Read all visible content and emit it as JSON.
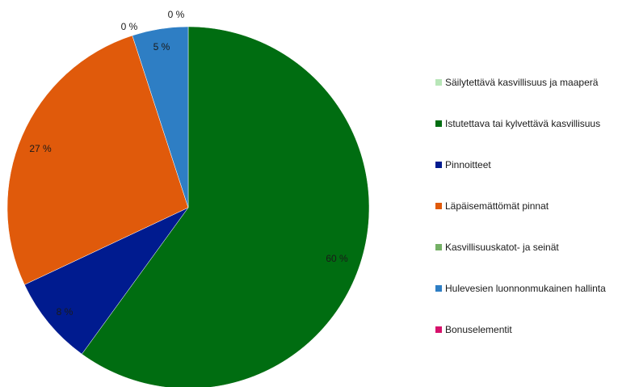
{
  "chart_data": {
    "type": "pie",
    "title": "",
    "legend_position": "right",
    "slices": [
      {
        "name": "Säilytettävä kasvillisuus ja maaperä",
        "value": 0,
        "label": "0 %",
        "color": "#b8e6b8"
      },
      {
        "name": "Istutettava tai kylvettävä kasvillisuus",
        "value": 60,
        "label": "60 %",
        "color": "#006d11"
      },
      {
        "name": "Pinnoitteet",
        "value": 8,
        "label": "8 %",
        "color": "#001b8f"
      },
      {
        "name": "Läpäisemättömät pinnat",
        "value": 27,
        "label": "27 %",
        "color": "#e05a0b"
      },
      {
        "name": "Kasvillisuuskatot- ja seinät",
        "value": 0,
        "label": "0 %",
        "color": "#74b065"
      },
      {
        "name": "Hulevesien luonnonmukainen hallinta",
        "value": 5,
        "label": "5 %",
        "color": "#2e7ec4"
      },
      {
        "name": "Bonuselementit",
        "value": 0,
        "label": "",
        "color": "#d6116b"
      }
    ]
  }
}
